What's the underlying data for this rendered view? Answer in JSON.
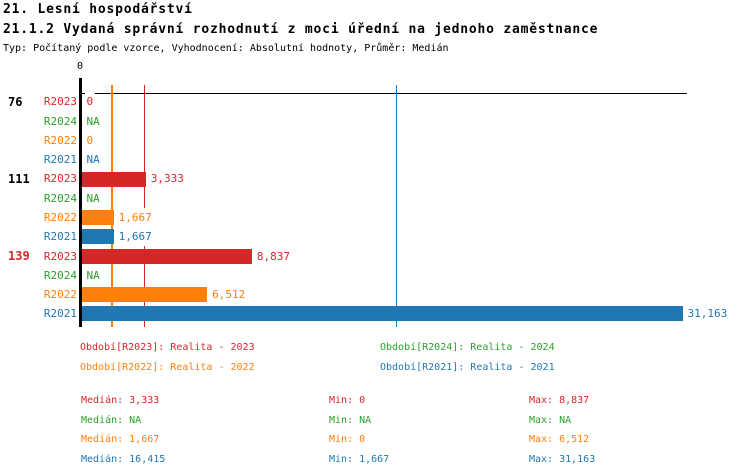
{
  "header": {
    "title": "21. Lesní hospodářství",
    "subtitle": "21.1.2 Vydaná správní rozhodnutí z moci úřední na jednoho zaměstnance",
    "meta": "Typ: Počítaný podle vzorce, Vyhodnocení: Absolutní hodnoty, Průměr: Medián"
  },
  "chart_data": {
    "type": "bar",
    "orientation": "horizontal",
    "title": "21.1.2 Vydaná správní rozhodnutí z moci úřední na jednoho zaměstnance",
    "x_axis": {
      "min": 0,
      "max": 31163,
      "tick_labels": [
        "0"
      ],
      "grid": false
    },
    "series_colors": {
      "R2023": "#d62728",
      "R2024": "#2ca02c",
      "R2022": "#ff7f0e",
      "R2021": "#1f77b4"
    },
    "groups": [
      {
        "label": "76",
        "label_color": "#000000",
        "rows": [
          {
            "series": "R2023",
            "value": 0,
            "display": "0"
          },
          {
            "series": "R2024",
            "value": null,
            "display": "NA"
          },
          {
            "series": "R2022",
            "value": 0,
            "display": "0"
          },
          {
            "series": "R2021",
            "value": null,
            "display": "NA"
          }
        ]
      },
      {
        "label": "111",
        "label_color": "#000000",
        "rows": [
          {
            "series": "R2023",
            "value": 3333,
            "display": "3,333"
          },
          {
            "series": "R2024",
            "value": null,
            "display": "NA"
          },
          {
            "series": "R2022",
            "value": 1667,
            "display": "1,667"
          },
          {
            "series": "R2021",
            "value": 1667,
            "display": "1,667"
          }
        ]
      },
      {
        "label": "139",
        "label_color": "#d62728",
        "rows": [
          {
            "series": "R2023",
            "value": 8837,
            "display": "8,837"
          },
          {
            "series": "R2024",
            "value": null,
            "display": "NA"
          },
          {
            "series": "R2022",
            "value": 6512,
            "display": "6,512"
          },
          {
            "series": "R2021",
            "value": 31163,
            "display": "31,163"
          }
        ]
      }
    ],
    "median_lines": [
      {
        "series": "R2022",
        "value": 1667,
        "color": "#ff7f0e"
      },
      {
        "series": "R2023",
        "value": 3333,
        "color": "#d62728"
      },
      {
        "series": "R2021",
        "value": 16415,
        "color": "#1f77b4"
      }
    ],
    "legend": [
      {
        "label": "Období[R2023]: Realita - 2023",
        "color": "#d62728"
      },
      {
        "label": "Období[R2024]: Realita - 2024",
        "color": "#2ca02c"
      },
      {
        "label": "Období[R2022]: Realita - 2022",
        "color": "#ff7f0e"
      },
      {
        "label": "Období[R2021]: Realita - 2021",
        "color": "#1f77b4"
      }
    ],
    "stats": [
      {
        "series": "R2023",
        "color": "#d62728",
        "median": 3333,
        "min": 0,
        "max": 8837,
        "median_text": "Medián: 3,333",
        "min_text": "Min: 0",
        "max_text": "Max: 8,837"
      },
      {
        "series": "R2024",
        "color": "#2ca02c",
        "median": null,
        "min": null,
        "max": null,
        "median_text": "Medián: NA",
        "min_text": "Min: NA",
        "max_text": "Max: NA"
      },
      {
        "series": "R2022",
        "color": "#ff7f0e",
        "median": 1667,
        "min": 0,
        "max": 6512,
        "median_text": "Medián: 1,667",
        "min_text": "Min: 0",
        "max_text": "Max: 6,512"
      },
      {
        "series": "R2021",
        "color": "#1f77b4",
        "median": 16415,
        "min": 1667,
        "max": 31163,
        "median_text": "Medián: 16,415",
        "min_text": "Min: 1,667",
        "max_text": "Max: 31,163"
      }
    ]
  }
}
